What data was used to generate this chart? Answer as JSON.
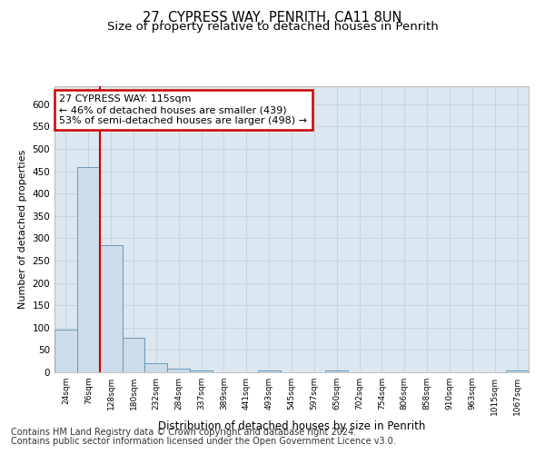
{
  "title_line1": "27, CYPRESS WAY, PENRITH, CA11 8UN",
  "title_line2": "Size of property relative to detached houses in Penrith",
  "xlabel": "Distribution of detached houses by size in Penrith",
  "ylabel": "Number of detached properties",
  "categories": [
    "24sqm",
    "76sqm",
    "128sqm",
    "180sqm",
    "232sqm",
    "284sqm",
    "337sqm",
    "389sqm",
    "441sqm",
    "493sqm",
    "545sqm",
    "597sqm",
    "650sqm",
    "702sqm",
    "754sqm",
    "806sqm",
    "858sqm",
    "910sqm",
    "963sqm",
    "1015sqm",
    "1067sqm"
  ],
  "values": [
    95,
    460,
    285,
    77,
    20,
    8,
    5,
    0,
    0,
    5,
    0,
    0,
    5,
    0,
    0,
    0,
    0,
    0,
    0,
    0,
    5
  ],
  "bar_color": "#ccdce9",
  "bar_edge_color": "#6699bb",
  "property_line_x": 1.5,
  "property_line_color": "#cc0000",
  "annotation_text": "27 CYPRESS WAY: 115sqm\n← 46% of detached houses are smaller (439)\n53% of semi-detached houses are larger (498) →",
  "annotation_box_color": "#ffffff",
  "annotation_border_color": "#cc0000",
  "ylim": [
    0,
    640
  ],
  "yticks": [
    0,
    50,
    100,
    150,
    200,
    250,
    300,
    350,
    400,
    450,
    500,
    550,
    600
  ],
  "grid_color": "#c8d4e0",
  "background_color": "#dde7f0",
  "footer_line1": "Contains HM Land Registry data © Crown copyright and database right 2024.",
  "footer_line2": "Contains public sector information licensed under the Open Government Licence v3.0.",
  "title_fontsize": 10.5,
  "subtitle_fontsize": 9.5,
  "annotation_fontsize": 8,
  "footer_fontsize": 7,
  "ylabel_fontsize": 8,
  "xlabel_fontsize": 8.5,
  "xtick_fontsize": 6.5,
  "ytick_fontsize": 7.5
}
